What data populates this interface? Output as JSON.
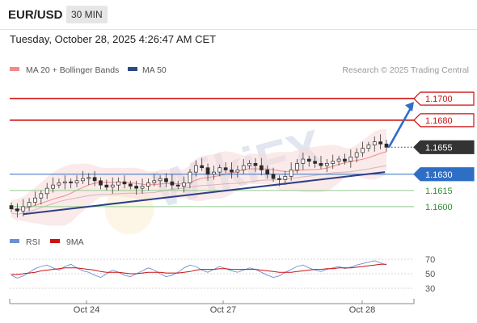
{
  "header": {
    "symbol": "EUR/USD",
    "interval": "30 MIN",
    "datetime": "Tuesday, October 28, 2025 4:26:47 AM CET"
  },
  "legend": {
    "ma20": "MA 20 + Bollinger Bands",
    "ma50": "MA 50",
    "source": "Research © 2025 Trading Central",
    "ma20_color": "#f28a8a",
    "ma50_color": "#2e4a85"
  },
  "rsi_legend": {
    "rsi": "RSI",
    "ma9": "9MA",
    "rsi_color": "#6b8fd1",
    "ma9_color": "#cc1111"
  },
  "watermark": "WikiFX",
  "chart_data": [
    {
      "type": "line",
      "subtype": "candlestick",
      "x_ticks": [
        "Oct 24",
        "Oct 27",
        "Oct 28"
      ],
      "ylim": [
        1.1582,
        1.1718
      ],
      "levels": [
        {
          "label": "1.1700",
          "value": 1.17,
          "kind": "resistance",
          "color": "#cc1111",
          "style": "solid"
        },
        {
          "label": "1.1680",
          "value": 1.168,
          "kind": "resistance",
          "color": "#cc1111",
          "style": "solid"
        },
        {
          "label": "1.1655",
          "value": 1.1655,
          "kind": "last-price",
          "color": "#333333",
          "style": "dotted"
        },
        {
          "label": "1.1630",
          "value": 1.163,
          "kind": "pivot",
          "color": "#2f6ec5",
          "style": "solid"
        },
        {
          "label": "1.1615",
          "value": 1.1615,
          "kind": "support",
          "color": "#8fc98f",
          "style": "solid"
        },
        {
          "label": "1.1600",
          "value": 1.16,
          "kind": "support",
          "color": "#8fc98f",
          "style": "solid"
        }
      ],
      "trendline": {
        "from": {
          "date": "Oct 23",
          "value": 1.1593
        },
        "to": {
          "date": "Oct 28",
          "value": 1.1632
        }
      },
      "projection": {
        "from": 1.1655,
        "to": 1.1697
      },
      "close_series": [
        1.1598,
        1.1596,
        1.16,
        1.1604,
        1.1608,
        1.1612,
        1.1617,
        1.162,
        1.1622,
        1.1623,
        1.1622,
        1.1624,
        1.1626,
        1.1627,
        1.1624,
        1.162,
        1.1618,
        1.162,
        1.1623,
        1.1621,
        1.1619,
        1.1617,
        1.1619,
        1.1622,
        1.1624,
        1.1626,
        1.1623,
        1.162,
        1.1619,
        1.1622,
        1.1632,
        1.1638,
        1.1636,
        1.163,
        1.1632,
        1.1636,
        1.1634,
        1.1632,
        1.1634,
        1.1638,
        1.164,
        1.1638,
        1.1634,
        1.163,
        1.1626,
        1.1625,
        1.1628,
        1.1634,
        1.164,
        1.1644,
        1.1642,
        1.164,
        1.1638,
        1.164,
        1.1642,
        1.1644,
        1.1642,
        1.1646,
        1.165,
        1.1654,
        1.1657,
        1.166,
        1.1658,
        1.1655
      ]
    },
    {
      "type": "line",
      "title": "RSI",
      "series_names": [
        "RSI",
        "9MA"
      ],
      "y_ticks": [
        70,
        50,
        30
      ],
      "ylim": [
        20,
        80
      ],
      "rsi": [
        48,
        44,
        47,
        52,
        57,
        60,
        62,
        58,
        55,
        60,
        63,
        58,
        54,
        52,
        48,
        45,
        50,
        55,
        52,
        48,
        46,
        50,
        54,
        58,
        55,
        50,
        46,
        48,
        52,
        58,
        62,
        60,
        55,
        52,
        56,
        60,
        57,
        54,
        52,
        55,
        58,
        56,
        52,
        48,
        45,
        47,
        52,
        56,
        60,
        62,
        58,
        55,
        53,
        56,
        58,
        60,
        57,
        59,
        62,
        64,
        66,
        68,
        65,
        62
      ],
      "ma9": [
        49,
        49,
        50,
        51,
        52,
        54,
        55,
        56,
        57,
        58,
        58,
        58,
        57,
        56,
        55,
        53,
        52,
        52,
        52,
        51,
        50,
        50,
        51,
        52,
        52,
        52,
        51,
        51,
        51,
        52,
        53,
        55,
        56,
        56,
        56,
        57,
        57,
        56,
        56,
        56,
        56,
        56,
        55,
        54,
        53,
        52,
        52,
        52,
        53,
        54,
        55,
        56,
        56,
        57,
        57,
        58,
        58,
        58,
        59,
        60,
        61,
        62,
        63,
        63
      ]
    }
  ]
}
